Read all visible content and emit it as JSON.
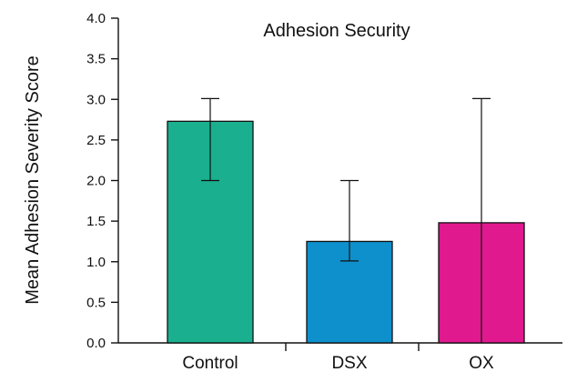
{
  "chart_data": {
    "type": "bar",
    "title": "Adhesion Security",
    "xlabel": "",
    "ylabel": "Mean Adhesion Severity Score",
    "categories": [
      "Control",
      "DSX",
      "OX"
    ],
    "values": [
      2.73,
      1.25,
      1.48
    ],
    "error_low": [
      2.0,
      1.01,
      0.0
    ],
    "error_high": [
      3.01,
      2.0,
      3.01
    ],
    "colors": [
      "#1aaf8f",
      "#0d90cc",
      "#e0198f"
    ],
    "ylim": [
      0,
      4
    ],
    "yticks": [
      "0.0",
      "0.5",
      "1.0",
      "1.5",
      "2.0",
      "2.5",
      "3.0",
      "3.5",
      "4.0"
    ],
    "grid": false,
    "legend": "none"
  }
}
